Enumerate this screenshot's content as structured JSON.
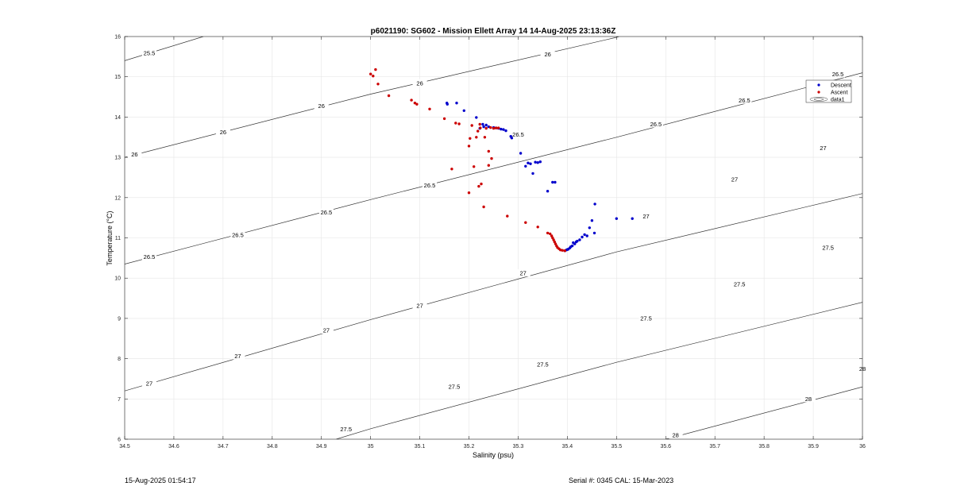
{
  "chart_data": {
    "type": "scatter",
    "title": "p6021190: SG602 - Mission Ellett Array 14 14-Aug-2025 23:13:36Z",
    "xlabel": "Salinity (psu)",
    "ylabel": "Temperature (°C)",
    "xlim": [
      34.5,
      36
    ],
    "ylim": [
      6,
      16
    ],
    "xticks": [
      34.5,
      34.6,
      34.7,
      34.8,
      34.9,
      35,
      35.1,
      35.2,
      35.3,
      35.4,
      35.5,
      35.6,
      35.7,
      35.8,
      35.9,
      36
    ],
    "xtick_labels": [
      "34.5",
      "34.6",
      "34.7",
      "34.8",
      "34.9",
      "35",
      "35.1",
      "35.2",
      "35.3",
      "35.4",
      "35.5",
      "35.6",
      "35.7",
      "35.8",
      "35.9",
      "36"
    ],
    "yticks": [
      6,
      7,
      8,
      9,
      10,
      11,
      12,
      13,
      14,
      15,
      16
    ],
    "ytick_labels": [
      "6",
      "7",
      "8",
      "9",
      "10",
      "11",
      "12",
      "13",
      "14",
      "15",
      "16"
    ],
    "grid": true,
    "legend_position": "top-right",
    "contours": [
      {
        "level": "25.5",
        "points": [
          [
            34.5,
            15.4
          ],
          [
            34.66,
            16.0
          ]
        ],
        "labels": [
          [
            34.55,
            15.59
          ]
        ]
      },
      {
        "level": "26",
        "points": [
          [
            34.5,
            13.0
          ],
          [
            35.0,
            14.57
          ],
          [
            35.5,
            15.98
          ],
          [
            35.505,
            16.0
          ]
        ],
        "labels": [
          [
            34.52,
            13.07
          ],
          [
            34.7,
            13.62
          ],
          [
            34.9,
            14.27
          ],
          [
            35.1,
            14.84
          ],
          [
            35.36,
            15.56
          ]
        ]
      },
      {
        "level": "26.5",
        "points": [
          [
            34.5,
            10.35
          ],
          [
            35.0,
            11.95
          ],
          [
            35.5,
            13.5
          ],
          [
            36.0,
            15.1
          ]
        ],
        "labels": [
          [
            34.55,
            10.53
          ],
          [
            34.73,
            11.07
          ],
          [
            34.91,
            11.63
          ],
          [
            35.12,
            12.3
          ],
          [
            35.3,
            13.56
          ],
          [
            35.58,
            13.82
          ],
          [
            35.76,
            14.41
          ],
          [
            35.95,
            15.06
          ]
        ]
      },
      {
        "level": "27",
        "points": [
          [
            34.5,
            7.2
          ],
          [
            35.0,
            8.97
          ],
          [
            35.5,
            10.65
          ],
          [
            36.0,
            12.1
          ]
        ],
        "labels": [
          [
            34.55,
            7.38
          ],
          [
            34.73,
            8.06
          ],
          [
            34.91,
            8.7
          ],
          [
            35.1,
            9.31
          ],
          [
            35.31,
            10.12
          ],
          [
            35.56,
            11.53
          ],
          [
            35.74,
            12.45
          ],
          [
            35.92,
            13.23
          ]
        ]
      },
      {
        "level": "27.5",
        "points": [
          [
            34.93,
            6.0
          ],
          [
            35.0,
            6.26
          ],
          [
            35.5,
            7.91
          ],
          [
            36.0,
            9.4
          ]
        ],
        "labels": [
          [
            34.95,
            6.25
          ],
          [
            35.17,
            7.3
          ],
          [
            35.35,
            7.85
          ],
          [
            35.56,
            9.0
          ],
          [
            35.75,
            9.85
          ],
          [
            35.93,
            10.75
          ]
        ]
      },
      {
        "level": "28",
        "points": [
          [
            35.6,
            6.0
          ],
          [
            36.0,
            7.3
          ]
        ],
        "labels": [
          [
            35.62,
            6.1
          ],
          [
            35.89,
            7.0
          ],
          [
            36.0,
            7.75
          ]
        ]
      }
    ],
    "series": [
      {
        "name": "Descent",
        "color": "#0000cc",
        "x": [
          35.155,
          35.156,
          35.175,
          35.19,
          35.215,
          35.222,
          35.228,
          35.23,
          35.235,
          35.24,
          35.25,
          35.255,
          35.26,
          35.265,
          35.27,
          35.275,
          35.285,
          35.287,
          35.305,
          35.315,
          35.32,
          35.325,
          35.33,
          35.335,
          35.34,
          35.345,
          35.36,
          35.37,
          35.375,
          35.395,
          35.398,
          35.4,
          35.402,
          35.405,
          35.407,
          35.41,
          35.412,
          35.415,
          35.418,
          35.42,
          35.425,
          35.43,
          35.435,
          35.44,
          35.445,
          35.45,
          35.455,
          35.456,
          35.5,
          35.532
        ],
        "y": [
          14.35,
          14.32,
          14.35,
          14.16,
          13.99,
          13.72,
          13.82,
          13.76,
          13.8,
          13.76,
          13.74,
          13.73,
          13.72,
          13.7,
          13.69,
          13.66,
          13.52,
          13.48,
          13.1,
          12.78,
          12.86,
          12.84,
          12.6,
          12.88,
          12.87,
          12.89,
          12.16,
          12.38,
          12.38,
          10.68,
          10.7,
          10.71,
          10.72,
          10.75,
          10.78,
          10.8,
          10.88,
          10.85,
          10.9,
          10.92,
          10.95,
          11.02,
          11.08,
          11.05,
          11.25,
          11.43,
          11.12,
          11.84,
          11.48,
          11.48
        ]
      },
      {
        "name": "Ascent",
        "color": "#cc0000",
        "x": [
          35.0,
          35.005,
          35.01,
          35.015,
          35.037,
          35.083,
          35.09,
          35.094,
          35.12,
          35.15,
          35.165,
          35.173,
          35.18,
          35.2,
          35.2,
          35.202,
          35.206,
          35.21,
          35.215,
          35.218,
          35.22,
          35.222,
          35.223,
          35.225,
          35.23,
          35.232,
          35.235,
          35.24,
          35.24,
          35.244,
          35.246,
          35.25,
          35.255,
          35.26,
          35.278,
          35.315,
          35.34,
          35.36,
          35.365,
          35.368,
          35.37,
          35.372,
          35.374,
          35.376,
          35.378,
          35.38,
          35.383,
          35.386,
          35.39,
          35.395
        ],
        "y": [
          15.07,
          15.02,
          15.18,
          14.82,
          14.53,
          14.42,
          14.35,
          14.32,
          14.2,
          13.96,
          12.71,
          13.85,
          13.83,
          12.12,
          13.28,
          13.47,
          13.79,
          12.77,
          13.5,
          13.65,
          12.28,
          13.82,
          13.73,
          12.34,
          11.77,
          13.5,
          13.72,
          12.8,
          13.15,
          13.74,
          12.97,
          13.72,
          13.73,
          13.73,
          11.54,
          11.38,
          11.27,
          11.12,
          11.1,
          11.05,
          11.0,
          10.95,
          10.9,
          10.85,
          10.8,
          10.76,
          10.73,
          10.7,
          10.69,
          10.68
        ]
      },
      {
        "name": "data1"
      }
    ]
  },
  "footer": {
    "date": "15-Aug-2025 01:54:17",
    "serial": "Serial #: 0345  CAL: 15-Mar-2023"
  }
}
